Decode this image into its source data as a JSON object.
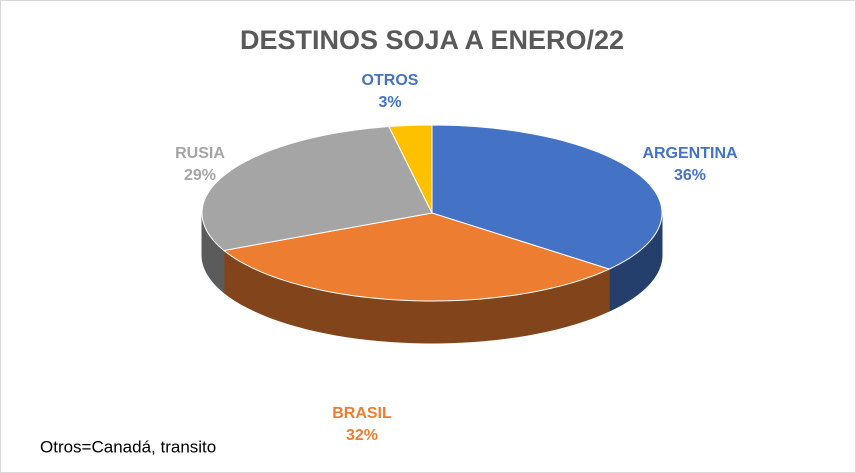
{
  "chart_data": {
    "type": "pie",
    "title": "DESTINOS SOJA A ENERO/22",
    "categories": [
      "ARGENTINA",
      "BRASIL",
      "RUSIA",
      "OTROS"
    ],
    "values": [
      36,
      32,
      29,
      3
    ],
    "value_labels": [
      "36%",
      "32%",
      "29%",
      "3%"
    ],
    "colors": [
      "#4472c4",
      "#ed7d31",
      "#a5a5a5",
      "#ffc000"
    ],
    "label_colors": [
      "#4472c4",
      "#ed7d31",
      "#a5a5a5",
      "#4472c4"
    ],
    "annotation": "Otros=Canadá, transito"
  }
}
